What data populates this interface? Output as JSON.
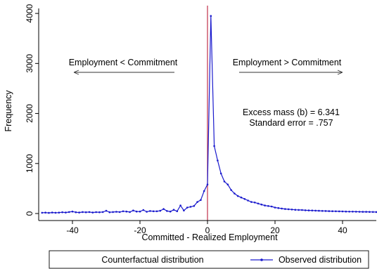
{
  "chart_data": {
    "type": "line",
    "title": "",
    "xlabel": "Committed - Realized Employment",
    "ylabel": "Frequency",
    "xlim": [
      -50,
      50
    ],
    "ylim": [
      0,
      4100
    ],
    "x_ticks": [
      -40,
      -20,
      0,
      20,
      40
    ],
    "y_ticks": [
      0,
      1000,
      2000,
      3000,
      4000
    ],
    "vertical_line_x": 0,
    "grid": false,
    "legend_position": "bottom",
    "annotations": {
      "left_label": "Employment < Commitment",
      "right_label": "Employment > Commitment",
      "excess_mass": "Excess mass (b) = 6.341",
      "std_error": "Standard error = .757"
    },
    "legend": {
      "counterfactual": "Counterfactual distribution",
      "observed": "Observed distribution"
    },
    "series": [
      {
        "name": "Observed distribution",
        "color": "#1a1acd",
        "x": [
          -49,
          -48,
          -47,
          -46,
          -45,
          -44,
          -43,
          -42,
          -41,
          -40,
          -39,
          -38,
          -37,
          -36,
          -35,
          -34,
          -33,
          -32,
          -31,
          -30,
          -29,
          -28,
          -27,
          -26,
          -25,
          -24,
          -23,
          -22,
          -21,
          -20,
          -19,
          -18,
          -17,
          -16,
          -15,
          -14,
          -13,
          -12,
          -11,
          -10,
          -9,
          -8,
          -7,
          -6,
          -5,
          -4,
          -3,
          -2,
          -1,
          0,
          1,
          2,
          3,
          4,
          5,
          6,
          7,
          8,
          9,
          10,
          11,
          12,
          13,
          14,
          15,
          16,
          17,
          18,
          19,
          20,
          21,
          22,
          23,
          24,
          25,
          26,
          27,
          28,
          29,
          30,
          31,
          32,
          33,
          34,
          35,
          36,
          37,
          38,
          39,
          40,
          41,
          42,
          43,
          44,
          45,
          46,
          47,
          48,
          49,
          50
        ],
        "values": [
          15,
          18,
          12,
          20,
          15,
          18,
          25,
          20,
          30,
          40,
          25,
          20,
          30,
          25,
          30,
          20,
          28,
          25,
          30,
          55,
          25,
          30,
          35,
          30,
          45,
          40,
          30,
          60,
          40,
          40,
          70,
          35,
          50,
          45,
          45,
          55,
          90,
          50,
          40,
          75,
          45,
          160,
          60,
          120,
          135,
          150,
          230,
          270,
          450,
          580,
          3950,
          1350,
          1060,
          800,
          640,
          580,
          470,
          400,
          350,
          320,
          290,
          260,
          230,
          220,
          200,
          180,
          160,
          150,
          140,
          120,
          110,
          100,
          90,
          85,
          80,
          75,
          72,
          70,
          65,
          62,
          60,
          58,
          55,
          52,
          50,
          48,
          46,
          45,
          44,
          42,
          40,
          38,
          38,
          36,
          35,
          34,
          33,
          32,
          31,
          30
        ]
      }
    ],
    "line_colors": {
      "axis": "#000000",
      "vertical_line": "#c0304a",
      "counterfactual": "#b0304a"
    }
  }
}
